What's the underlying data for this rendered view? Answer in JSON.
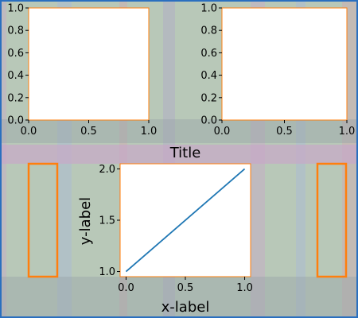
{
  "figure": {
    "background_color": "#b8c8b8",
    "frame_color": "#2a6fbf",
    "band_colors": [
      "#c8a8c8",
      "#a8b8d8",
      "#d0a8b0",
      "#b0a8c8"
    ],
    "shade_color": "#9aa4a8",
    "subfigure_title": "Title"
  },
  "chart_data": [
    {
      "type": "line",
      "title": "",
      "xlabel": "",
      "ylabel": "",
      "xlim": [
        0,
        1
      ],
      "ylim": [
        0,
        1
      ],
      "xticks": [
        "0.0",
        "0.5",
        "1.0"
      ],
      "yticks": [
        "0.0",
        "0.2",
        "0.4",
        "0.6",
        "0.8",
        "1.0"
      ],
      "series": []
    },
    {
      "type": "line",
      "title": "",
      "xlabel": "",
      "ylabel": "",
      "xlim": [
        0,
        1
      ],
      "ylim": [
        0,
        1
      ],
      "xticks": [
        "0.0",
        "0.5",
        "1.0"
      ],
      "yticks": [
        "0.0",
        "0.2",
        "0.4",
        "0.6",
        "0.8",
        "1.0"
      ],
      "series": []
    },
    {
      "type": "line",
      "title": "",
      "xlabel": "x-label",
      "ylabel": "y-label",
      "xlim": [
        -0.05,
        1.05
      ],
      "ylim": [
        0.95,
        2.05
      ],
      "xticks": [
        "0.0",
        "0.5",
        "1.0"
      ],
      "yticks": [
        "1.0",
        "1.5",
        "2.0"
      ],
      "series": [
        {
          "x": [
            0,
            1
          ],
          "y": [
            1,
            2
          ],
          "color": "#1f77b4"
        }
      ]
    }
  ],
  "empty_axes_color": "#ff7f0e"
}
